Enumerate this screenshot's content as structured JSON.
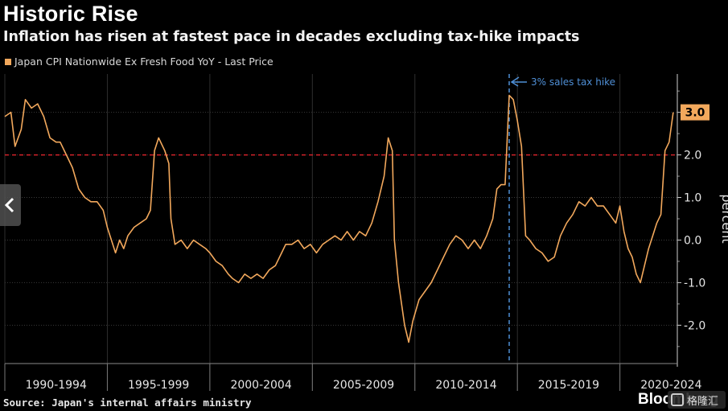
{
  "title": "Historic Rise",
  "subtitle": "Inflation has risen at fastest pace in decades excluding tax-hike impacts",
  "source": "Source: Japan's internal affairs ministry",
  "brand": "Bloomberg",
  "watermark_text": "格隆汇",
  "chart_data": {
    "type": "line",
    "title": "Historic Rise",
    "subtitle": "Inflation has risen at fastest pace in decades excluding tax-hike impacts",
    "ylabel": "percent",
    "xlim": [
      1990,
      2022.8
    ],
    "ylim": [
      -2.9,
      3.9
    ],
    "yticks": [
      -2.0,
      -1.0,
      0.0,
      1.0,
      2.0,
      3.0
    ],
    "ytick_labels": [
      "-2.0",
      "-1.0",
      "0.0",
      "1.0",
      "2.0",
      "3.0"
    ],
    "x_categories": [
      "1990-1994",
      "1995-1999",
      "2000-2004",
      "2005-2009",
      "2010-2014",
      "2015-2019",
      "2020-2024"
    ],
    "x_category_centers": [
      1992.5,
      1997.5,
      2002.5,
      2007.5,
      2012.5,
      2017.5,
      2022.5
    ],
    "x_dividers": [
      1990,
      1995,
      2000,
      2005,
      2010,
      2015,
      2020
    ],
    "legend_position": "top-left",
    "series": [
      {
        "name": "Japan CPI Nationwide Ex Fresh Food YoY - Last Price",
        "color": "#f2a85c",
        "points": [
          [
            1990.0,
            2.9
          ],
          [
            1990.3,
            3.0
          ],
          [
            1990.5,
            2.2
          ],
          [
            1990.8,
            2.6
          ],
          [
            1991.0,
            3.3
          ],
          [
            1991.3,
            3.1
          ],
          [
            1991.6,
            3.2
          ],
          [
            1991.9,
            2.9
          ],
          [
            1992.2,
            2.4
          ],
          [
            1992.5,
            2.3
          ],
          [
            1992.7,
            2.3
          ],
          [
            1993.0,
            2.0
          ],
          [
            1993.3,
            1.7
          ],
          [
            1993.6,
            1.2
          ],
          [
            1993.9,
            1.0
          ],
          [
            1994.2,
            0.9
          ],
          [
            1994.5,
            0.9
          ],
          [
            1994.8,
            0.7
          ],
          [
            1995.0,
            0.3
          ],
          [
            1995.2,
            0.0
          ],
          [
            1995.4,
            -0.3
          ],
          [
            1995.6,
            0.0
          ],
          [
            1995.8,
            -0.2
          ],
          [
            1996.0,
            0.1
          ],
          [
            1996.3,
            0.3
          ],
          [
            1996.6,
            0.4
          ],
          [
            1996.9,
            0.5
          ],
          [
            1997.1,
            0.7
          ],
          [
            1997.3,
            2.1
          ],
          [
            1997.5,
            2.4
          ],
          [
            1997.8,
            2.1
          ],
          [
            1998.0,
            1.8
          ],
          [
            1998.1,
            0.5
          ],
          [
            1998.3,
            -0.1
          ],
          [
            1998.6,
            0.0
          ],
          [
            1998.9,
            -0.2
          ],
          [
            1999.2,
            0.0
          ],
          [
            1999.5,
            -0.1
          ],
          [
            1999.8,
            -0.2
          ],
          [
            2000.0,
            -0.3
          ],
          [
            2000.3,
            -0.5
          ],
          [
            2000.6,
            -0.6
          ],
          [
            2000.9,
            -0.8
          ],
          [
            2001.1,
            -0.9
          ],
          [
            2001.4,
            -1.0
          ],
          [
            2001.7,
            -0.8
          ],
          [
            2002.0,
            -0.9
          ],
          [
            2002.3,
            -0.8
          ],
          [
            2002.6,
            -0.9
          ],
          [
            2002.9,
            -0.7
          ],
          [
            2003.2,
            -0.6
          ],
          [
            2003.5,
            -0.3
          ],
          [
            2003.7,
            -0.1
          ],
          [
            2004.0,
            -0.1
          ],
          [
            2004.3,
            0.0
          ],
          [
            2004.6,
            -0.2
          ],
          [
            2004.9,
            -0.1
          ],
          [
            2005.2,
            -0.3
          ],
          [
            2005.5,
            -0.1
          ],
          [
            2005.8,
            0.0
          ],
          [
            2006.1,
            0.1
          ],
          [
            2006.4,
            0.0
          ],
          [
            2006.7,
            0.2
          ],
          [
            2007.0,
            0.0
          ],
          [
            2007.3,
            0.2
          ],
          [
            2007.6,
            0.1
          ],
          [
            2007.9,
            0.4
          ],
          [
            2008.2,
            0.9
          ],
          [
            2008.5,
            1.5
          ],
          [
            2008.7,
            2.4
          ],
          [
            2008.9,
            2.1
          ],
          [
            2009.0,
            0.0
          ],
          [
            2009.2,
            -1.0
          ],
          [
            2009.5,
            -2.0
          ],
          [
            2009.7,
            -2.4
          ],
          [
            2009.9,
            -1.9
          ],
          [
            2010.2,
            -1.4
          ],
          [
            2010.5,
            -1.2
          ],
          [
            2010.8,
            -1.0
          ],
          [
            2011.1,
            -0.7
          ],
          [
            2011.4,
            -0.4
          ],
          [
            2011.7,
            -0.1
          ],
          [
            2012.0,
            0.1
          ],
          [
            2012.3,
            0.0
          ],
          [
            2012.6,
            -0.2
          ],
          [
            2012.9,
            0.0
          ],
          [
            2013.2,
            -0.2
          ],
          [
            2013.5,
            0.1
          ],
          [
            2013.8,
            0.5
          ],
          [
            2014.0,
            1.2
          ],
          [
            2014.2,
            1.3
          ],
          [
            2014.4,
            1.3
          ],
          [
            2014.6,
            3.4
          ],
          [
            2014.8,
            3.3
          ],
          [
            2015.0,
            2.8
          ],
          [
            2015.2,
            2.2
          ],
          [
            2015.4,
            0.1
          ],
          [
            2015.6,
            0.0
          ],
          [
            2015.9,
            -0.2
          ],
          [
            2016.2,
            -0.3
          ],
          [
            2016.5,
            -0.5
          ],
          [
            2016.8,
            -0.4
          ],
          [
            2017.1,
            0.1
          ],
          [
            2017.4,
            0.4
          ],
          [
            2017.7,
            0.6
          ],
          [
            2018.0,
            0.9
          ],
          [
            2018.3,
            0.8
          ],
          [
            2018.6,
            1.0
          ],
          [
            2018.9,
            0.8
          ],
          [
            2019.2,
            0.8
          ],
          [
            2019.5,
            0.6
          ],
          [
            2019.8,
            0.4
          ],
          [
            2020.0,
            0.8
          ],
          [
            2020.2,
            0.2
          ],
          [
            2020.4,
            -0.2
          ],
          [
            2020.6,
            -0.4
          ],
          [
            2020.8,
            -0.8
          ],
          [
            2021.0,
            -1.0
          ],
          [
            2021.2,
            -0.6
          ],
          [
            2021.4,
            -0.2
          ],
          [
            2021.6,
            0.1
          ],
          [
            2021.8,
            0.4
          ],
          [
            2022.0,
            0.6
          ],
          [
            2022.2,
            2.1
          ],
          [
            2022.4,
            2.3
          ],
          [
            2022.6,
            3.0
          ]
        ]
      }
    ],
    "reference_line": {
      "y": 2.0,
      "color": "#d2232a",
      "style": "dashed"
    },
    "annotation": {
      "x": 2014.6,
      "text": "3% sales tax hike",
      "color": "#4f8fd6",
      "style": "dashed-vertical"
    },
    "last_value": {
      "value": 3.0,
      "label": "3.0",
      "color": "#f2a85c"
    }
  }
}
